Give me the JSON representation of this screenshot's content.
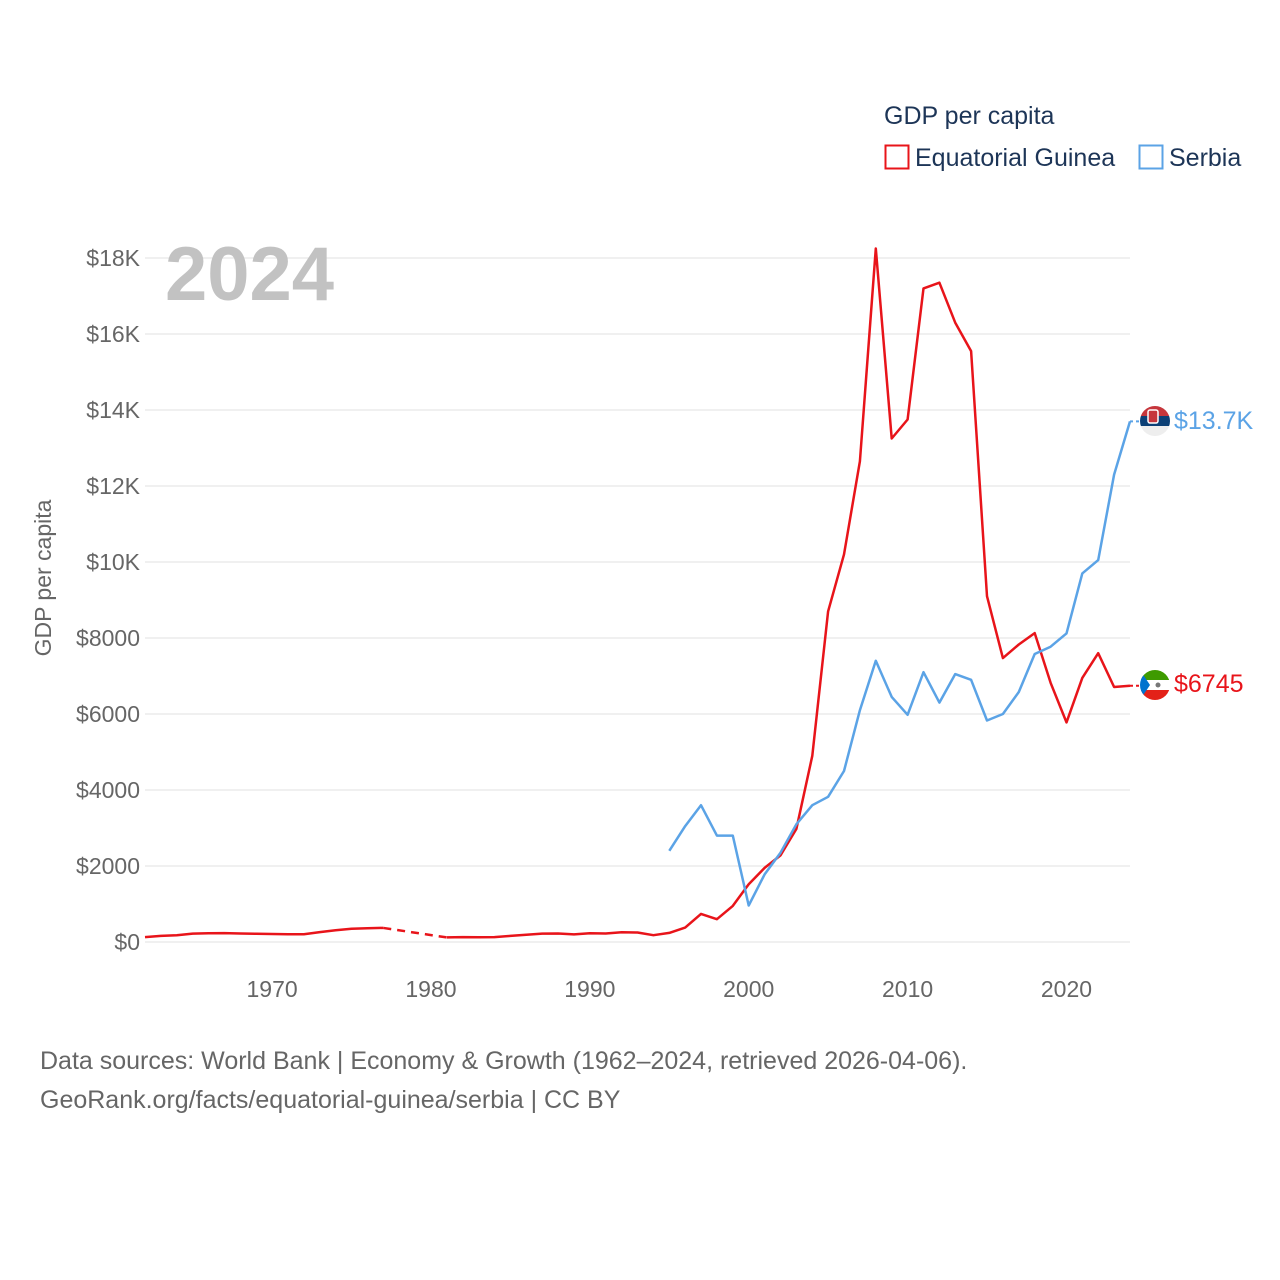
{
  "chart_data": {
    "type": "line",
    "legend_title": "GDP per capita",
    "ylabel": "GDP per capita",
    "year_label": "2024",
    "xlim": [
      1962,
      2024
    ],
    "ylim": [
      0,
      18000
    ],
    "x_ticks": [
      1970,
      1980,
      1990,
      2000,
      2010,
      2020
    ],
    "y_ticks": [
      {
        "value": 0,
        "label": "$0"
      },
      {
        "value": 2000,
        "label": "$2000"
      },
      {
        "value": 4000,
        "label": "$4000"
      },
      {
        "value": 6000,
        "label": "$6000"
      },
      {
        "value": 8000,
        "label": "$8000"
      },
      {
        "value": 10000,
        "label": "$10K"
      },
      {
        "value": 12000,
        "label": "$12K"
      },
      {
        "value": 14000,
        "label": "$14K"
      },
      {
        "value": 16000,
        "label": "$16K"
      },
      {
        "value": 18000,
        "label": "$18K"
      }
    ],
    "series": [
      {
        "name": "Equatorial Guinea",
        "color": "#e8141a",
        "end_label": "$6745",
        "flag": "equatorial-guinea-flag-icon",
        "gaps": [
          [
            1977,
            1981
          ]
        ],
        "points": [
          [
            1962,
            130
          ],
          [
            1963,
            160
          ],
          [
            1964,
            180
          ],
          [
            1965,
            220
          ],
          [
            1966,
            230
          ],
          [
            1967,
            235
          ],
          [
            1968,
            225
          ],
          [
            1969,
            215
          ],
          [
            1970,
            210
          ],
          [
            1971,
            205
          ],
          [
            1972,
            205
          ],
          [
            1973,
            260
          ],
          [
            1974,
            310
          ],
          [
            1975,
            350
          ],
          [
            1976,
            360
          ],
          [
            1977,
            370
          ],
          [
            1981,
            120
          ],
          [
            1982,
            130
          ],
          [
            1983,
            125
          ],
          [
            1984,
            130
          ],
          [
            1985,
            160
          ],
          [
            1986,
            190
          ],
          [
            1987,
            220
          ],
          [
            1988,
            225
          ],
          [
            1989,
            200
          ],
          [
            1990,
            230
          ],
          [
            1991,
            225
          ],
          [
            1992,
            255
          ],
          [
            1993,
            250
          ],
          [
            1994,
            180
          ],
          [
            1995,
            240
          ],
          [
            1996,
            380
          ],
          [
            1997,
            740
          ],
          [
            1998,
            600
          ],
          [
            1999,
            950
          ],
          [
            2000,
            1520
          ],
          [
            2001,
            1950
          ],
          [
            2002,
            2280
          ],
          [
            2003,
            2980
          ],
          [
            2004,
            4900
          ],
          [
            2005,
            8700
          ],
          [
            2006,
            10200
          ],
          [
            2007,
            12650
          ],
          [
            2008,
            18250
          ],
          [
            2009,
            13250
          ],
          [
            2010,
            13750
          ],
          [
            2011,
            17200
          ],
          [
            2012,
            17350
          ],
          [
            2013,
            16300
          ],
          [
            2014,
            15550
          ],
          [
            2015,
            9100
          ],
          [
            2016,
            7470
          ],
          [
            2017,
            7830
          ],
          [
            2018,
            8130
          ],
          [
            2019,
            6820
          ],
          [
            2020,
            5780
          ],
          [
            2021,
            6950
          ],
          [
            2022,
            7600
          ],
          [
            2023,
            6710
          ],
          [
            2024,
            6745
          ]
        ]
      },
      {
        "name": "Serbia",
        "color": "#5ba3e6",
        "end_label": "$13.7K",
        "flag": "serbia-flag-icon",
        "gaps": [],
        "points": [
          [
            1995,
            2400
          ],
          [
            1996,
            3050
          ],
          [
            1997,
            3600
          ],
          [
            1998,
            2800
          ],
          [
            1999,
            2800
          ],
          [
            2000,
            960
          ],
          [
            2001,
            1780
          ],
          [
            2002,
            2350
          ],
          [
            2003,
            3100
          ],
          [
            2004,
            3600
          ],
          [
            2005,
            3820
          ],
          [
            2006,
            4500
          ],
          [
            2007,
            6100
          ],
          [
            2008,
            7400
          ],
          [
            2009,
            6450
          ],
          [
            2010,
            5980
          ],
          [
            2011,
            7100
          ],
          [
            2012,
            6300
          ],
          [
            2013,
            7050
          ],
          [
            2014,
            6900
          ],
          [
            2015,
            5830
          ],
          [
            2016,
            6000
          ],
          [
            2017,
            6580
          ],
          [
            2018,
            7580
          ],
          [
            2019,
            7770
          ],
          [
            2020,
            8120
          ],
          [
            2021,
            9700
          ],
          [
            2022,
            10050
          ],
          [
            2023,
            12300
          ],
          [
            2024,
            13700
          ]
        ]
      }
    ]
  },
  "source_line1": "Data sources: World Bank | Economy & Growth (1962–2024, retrieved 2026-04-06).",
  "source_line2": "GeoRank.org/facts/equatorial-guinea/serbia | CC BY"
}
